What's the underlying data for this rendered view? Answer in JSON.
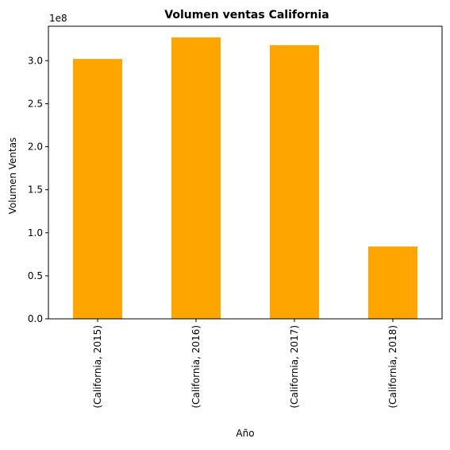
{
  "chart_data": {
    "type": "bar",
    "title": "Volumen ventas California",
    "xlabel": "Año",
    "ylabel": "Volumen Ventas",
    "y_offset_label": "1e8",
    "y_scale_factor": 100000000,
    "categories": [
      "(California, 2015)",
      "(California, 2016)",
      "(California, 2017)",
      "(California, 2018)"
    ],
    "values": [
      302000000,
      327000000,
      318000000,
      84000000
    ],
    "ylim": [
      0,
      340000000
    ],
    "yticks": [
      0,
      50000000,
      100000000,
      150000000,
      200000000,
      250000000,
      300000000
    ],
    "ytick_labels": [
      "0.0",
      "0.5",
      "1.0",
      "1.5",
      "2.0",
      "2.5",
      "3.0"
    ],
    "bar_color": "#FFA500",
    "grid": false,
    "legend": "none"
  }
}
